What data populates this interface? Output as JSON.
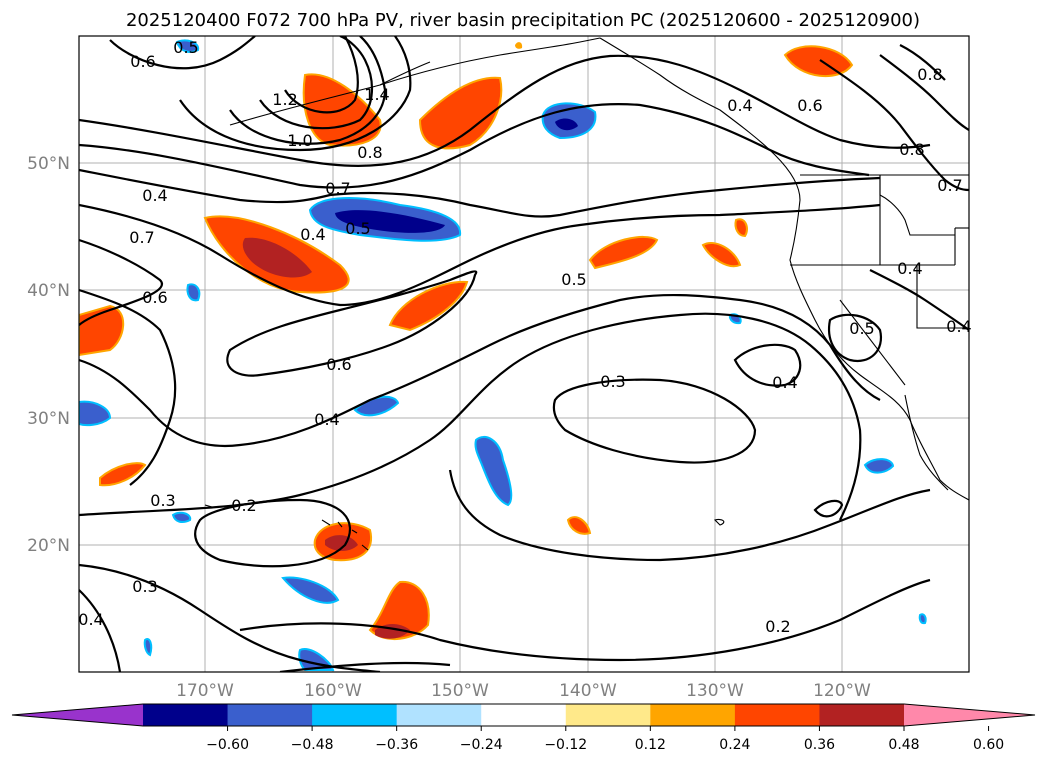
{
  "title": "2025120400 F072 700 hPa PV, river basin precipitation PC (2025120600 - 2025120900)",
  "map": {
    "lat_labels": [
      "50°N",
      "40°N",
      "30°N",
      "20°N"
    ],
    "lon_labels": [
      "170°W",
      "160°W",
      "150°W",
      "140°W",
      "130°W",
      "120°W"
    ],
    "contour_labels": [
      "0.5",
      "0.6",
      "1.2",
      "1.4",
      "1.0",
      "0.8",
      "0.4",
      "0.6",
      "0.8",
      "0.8",
      "0.7",
      "0.4",
      "0.7",
      "0.5",
      "0.4",
      "0.7",
      "0.6",
      "0.5",
      "0.4",
      "0.5",
      "0.4",
      "0.6",
      "0.3",
      "0.4",
      "0.4",
      "0.3",
      "0.2",
      "0.3",
      "0.4",
      "0.2"
    ]
  },
  "colorbar": {
    "ticks": [
      "−0.60",
      "−0.48",
      "−0.36",
      "−0.24",
      "−0.12",
      "0.12",
      "0.24",
      "0.36",
      "0.48",
      "0.60"
    ],
    "colors": [
      "#9933cc",
      "#00008b",
      "#3a5fcd",
      "#00bfff",
      "#b0e2ff",
      "#ffffff",
      "#ffe98a",
      "#ffa500",
      "#ff4500",
      "#b22222",
      "#ff88aa"
    ]
  }
}
